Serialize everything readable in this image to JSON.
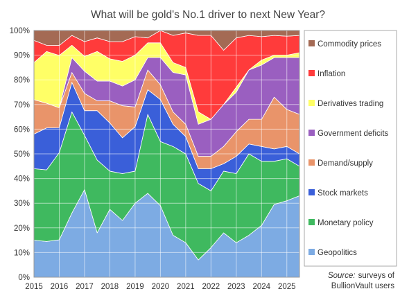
{
  "chart_data": {
    "type": "area",
    "stacked": true,
    "normalized": true,
    "title": "What will be gold's No.1 driver to next New Year?",
    "xlabel": "",
    "ylabel": "",
    "xlim": [
      2015,
      2025.5
    ],
    "ylim": [
      0,
      100
    ],
    "x_ticks": [
      2015,
      2016,
      2017,
      2018,
      2019,
      2020,
      2021,
      2022,
      2023,
      2024,
      2025
    ],
    "y_ticks": [
      0,
      10,
      20,
      30,
      40,
      50,
      60,
      70,
      80,
      90,
      100
    ],
    "y_tick_labels": [
      "0%",
      "10%",
      "20%",
      "30%",
      "40%",
      "50%",
      "60%",
      "70%",
      "80%",
      "90%",
      "100%"
    ],
    "grid": true,
    "legend_position": "right",
    "x": [
      2015.0,
      2015.5,
      2016.0,
      2016.5,
      2017.0,
      2017.5,
      2018.0,
      2018.5,
      2019.0,
      2019.5,
      2020.0,
      2020.5,
      2021.0,
      2021.5,
      2022.0,
      2022.5,
      2023.0,
      2023.5,
      2024.0,
      2024.5,
      2025.0,
      2025.5
    ],
    "series": [
      {
        "name": "Geopolitics",
        "color": "#7dabe3",
        "values": [
          15,
          14.5,
          15,
          26,
          35.5,
          18,
          27.5,
          23,
          30,
          34,
          29,
          17,
          14,
          7,
          12,
          18,
          14,
          17,
          21,
          29.5,
          31,
          33
        ]
      },
      {
        "name": "Monetary policy",
        "color": "#3fb95f",
        "values": [
          29,
          29,
          35,
          41,
          22,
          29.5,
          15.5,
          19,
          13,
          32,
          26,
          36,
          36,
          31,
          23,
          25,
          28,
          33,
          26,
          17.5,
          17,
          12
        ]
      },
      {
        "name": "Stock markets",
        "color": "#3a5fd9",
        "values": [
          14,
          17,
          10,
          12,
          10,
          20,
          19.5,
          14.5,
          18,
          10,
          17,
          9,
          7,
          6,
          9,
          3,
          7,
          4,
          6,
          5,
          5,
          5
        ]
      },
      {
        "name": "Demand/supply",
        "color": "#e9946a",
        "values": [
          14,
          10,
          8,
          4,
          7,
          4,
          9,
          13,
          8,
          8,
          6,
          5,
          5,
          5,
          5,
          7,
          10,
          10,
          11,
          21,
          15,
          16
        ]
      },
      {
        "name": "Government deficits",
        "color": "#9a5fc0",
        "values": [
          0,
          0,
          0,
          6,
          9,
          8,
          8,
          8,
          11,
          5,
          11,
          16,
          20,
          13,
          15,
          17,
          16,
          20,
          22,
          16,
          21,
          23
        ]
      },
      {
        "name": "Derivatives trading",
        "color": "#ffff66",
        "values": [
          15,
          21,
          21,
          5,
          6,
          12,
          9,
          10,
          10,
          6,
          6,
          4,
          3,
          5,
          0,
          0,
          2,
          0,
          2,
          1,
          1,
          2
        ]
      },
      {
        "name": "Inflation",
        "color": "#ff3b3b",
        "values": [
          9,
          2.5,
          4,
          4,
          6,
          5.5,
          7,
          8,
          7.5,
          2,
          5,
          11,
          14,
          31,
          34,
          22,
          20,
          14,
          9.5,
          8,
          7.7,
          7
        ]
      },
      {
        "name": "Commodity prices",
        "color": "#a46a54",
        "values": [
          4,
          6,
          6,
          2,
          4.5,
          3,
          4.5,
          4.5,
          2.5,
          3,
          0,
          2,
          1,
          2,
          2,
          8,
          3,
          2,
          2.5,
          2,
          2.3,
          2
        ]
      }
    ],
    "legend_order": [
      "Commodity prices",
      "Inflation",
      "Derivatives trading",
      "Government deficits",
      "Demand/supply",
      "Stock markets",
      "Monetary policy",
      "Geopolitics"
    ],
    "source_label": "Source:",
    "source_text_1": "surveys of",
    "source_text_2": "BullionVault users"
  }
}
